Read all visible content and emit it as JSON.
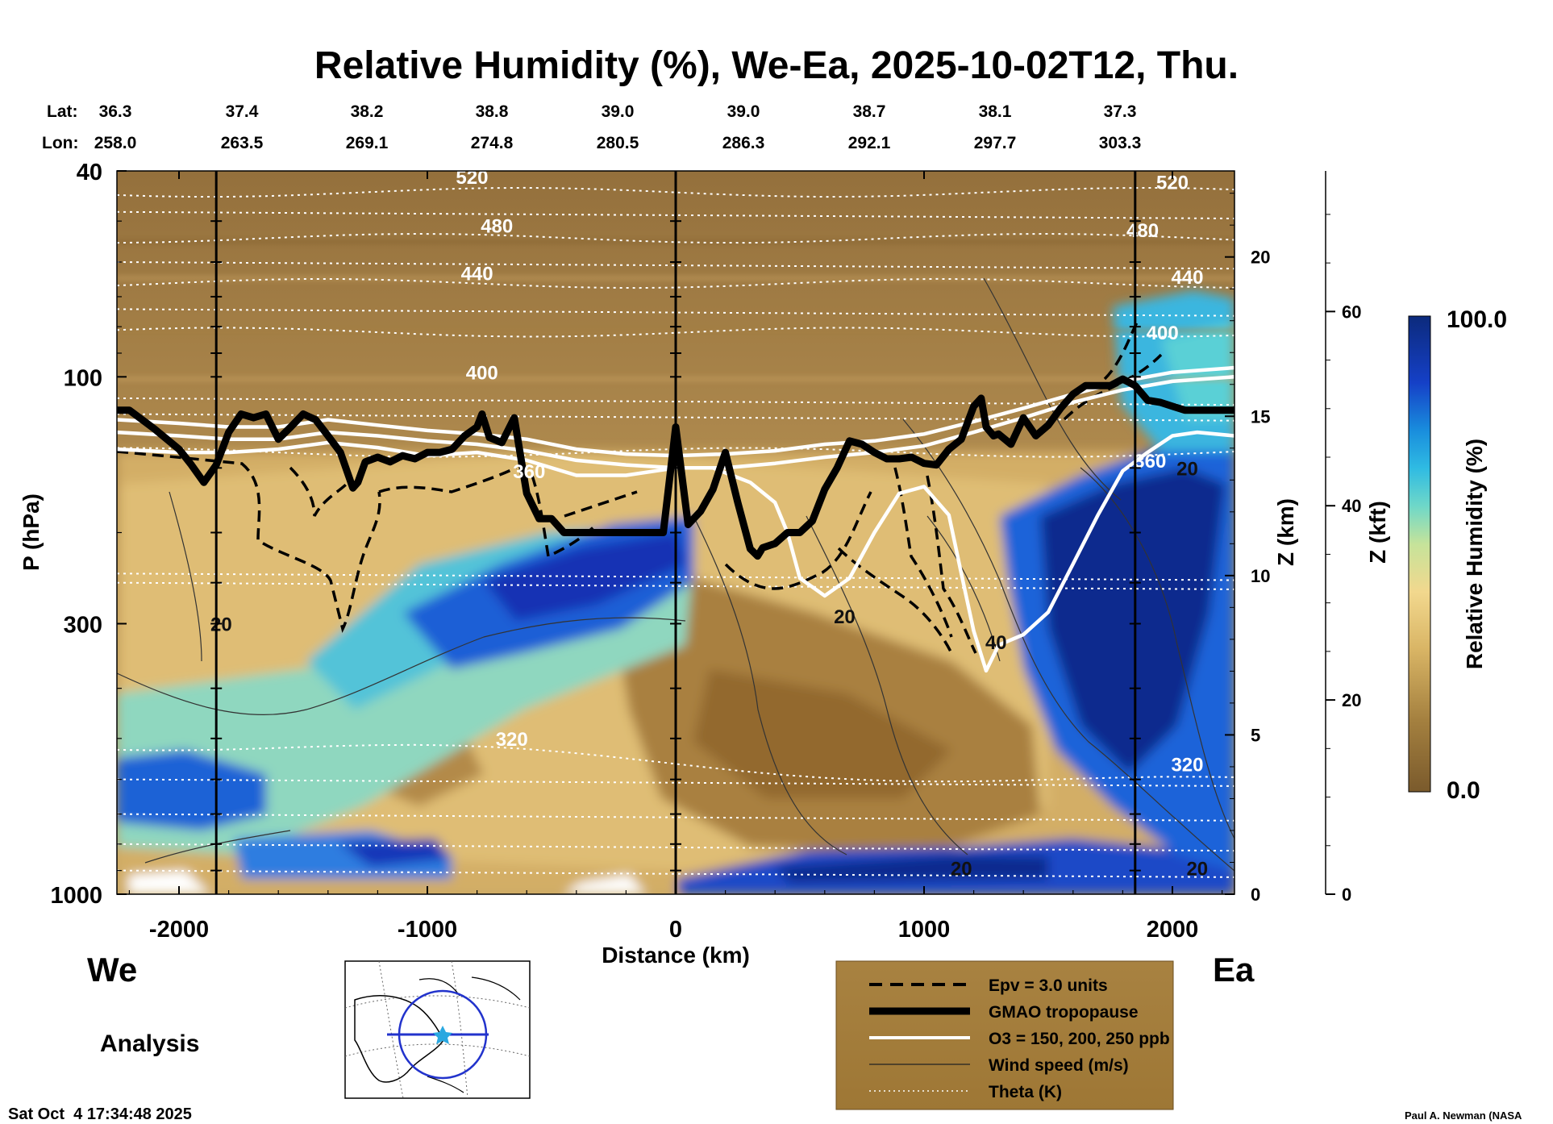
{
  "chart_data": {
    "type": "heatmap",
    "title": "Relative Humidity (%), We-Ea, 2025-10-02T12, Thu.",
    "xlabel": "Distance (km)",
    "ylabel": "P (hPa)",
    "y2label": "Z (km)",
    "y3label": "Z (kft)",
    "colorbar_label": "Relative Humidity (%)",
    "colorbar_max": "100.0",
    "colorbar_min": "0.0",
    "xlim": [
      -2250,
      2250
    ],
    "ylim": [
      1000,
      40
    ],
    "y_scale": "log",
    "x_ticks": [
      "-2000",
      "-1000",
      "0",
      "1000",
      "2000"
    ],
    "x_tick_values": [
      -2000,
      -1000,
      0,
      1000,
      2000
    ],
    "y_ticks": [
      "40",
      "100",
      "300",
      "1000"
    ],
    "y_tick_values": [
      40,
      100,
      300,
      1000
    ],
    "z_km_ticks": [
      "0",
      "5",
      "10",
      "15",
      "20"
    ],
    "z_km_values": [
      0,
      5,
      10,
      15,
      20
    ],
    "z_kft_ticks": [
      "0",
      "20",
      "40",
      "60"
    ],
    "z_kft_values": [
      0,
      20,
      40,
      60
    ],
    "lat_label": "Lat:",
    "lon_label": "Lon:",
    "lat_values": [
      "36.3",
      "37.4",
      "38.2",
      "38.8",
      "39.0",
      "39.0",
      "38.7",
      "38.1",
      "37.3"
    ],
    "lon_values": [
      "258.0",
      "263.5",
      "269.1",
      "274.8",
      "280.5",
      "286.3",
      "292.1",
      "297.7",
      "303.3"
    ],
    "vertical_lines_km": [
      -1850,
      0,
      1850
    ],
    "theta_contours": [
      {
        "label": "520",
        "p": 44
      },
      {
        "label": "480",
        "p": 54
      },
      {
        "label": "440",
        "p": 66
      },
      {
        "label": "400",
        "p": 82
      },
      {
        "label": "360",
        "p": 140
      },
      {
        "label": "320",
        "p": 560
      }
    ],
    "theta_labels": [
      {
        "text": "520",
        "x": -820,
        "p": 41
      },
      {
        "text": "520",
        "x": 2000,
        "p": 42
      },
      {
        "text": "480",
        "x": -720,
        "p": 51
      },
      {
        "text": "480",
        "x": 1880,
        "p": 52
      },
      {
        "text": "440",
        "x": -800,
        "p": 63
      },
      {
        "text": "440",
        "x": 2060,
        "p": 64
      },
      {
        "text": "400",
        "x": -780,
        "p": 98
      },
      {
        "text": "400",
        "x": 1960,
        "p": 82
      },
      {
        "text": "360",
        "x": -590,
        "p": 152
      },
      {
        "text": "360",
        "x": 1910,
        "p": 145
      },
      {
        "text": "320",
        "x": -660,
        "p": 500
      },
      {
        "text": "320",
        "x": 2060,
        "p": 560
      }
    ],
    "wind_labels": [
      {
        "text": "20",
        "x": -1830,
        "p": 300
      },
      {
        "text": "20",
        "x": 680,
        "p": 290
      },
      {
        "text": "40",
        "x": 1290,
        "p": 325
      },
      {
        "text": "20",
        "x": 1150,
        "p": 890
      },
      {
        "text": "20",
        "x": 2100,
        "p": 890
      },
      {
        "text": "20",
        "x": 2060,
        "p": 150
      }
    ],
    "tropopause": {
      "x": [
        -2250,
        -2200,
        -2100,
        -2000,
        -1950,
        -1900,
        -1850,
        -1800,
        -1750,
        -1700,
        -1650,
        -1600,
        -1550,
        -1500,
        -1450,
        -1400,
        -1350,
        -1300,
        -1280,
        -1250,
        -1200,
        -1150,
        -1100,
        -1050,
        -1000,
        -950,
        -900,
        -850,
        -800,
        -780,
        -750,
        -700,
        -650,
        -600,
        -550,
        -500,
        -450,
        -400,
        -350,
        -300,
        -250,
        -200,
        -150,
        -100,
        -50,
        0,
        50,
        100,
        150,
        200,
        250,
        300,
        330,
        350,
        400,
        450,
        500,
        550,
        600,
        650,
        700,
        750,
        800,
        850,
        900,
        950,
        1000,
        1050,
        1100,
        1150,
        1200,
        1230,
        1250,
        1280,
        1300,
        1350,
        1400,
        1450,
        1500,
        1550,
        1600,
        1650,
        1700,
        1750,
        1800,
        1850,
        1900,
        1950,
        2000,
        2050,
        2100,
        2150,
        2200,
        2250
      ],
      "p": [
        116,
        116,
        126,
        138,
        148,
        160,
        148,
        128,
        118,
        120,
        118,
        132,
        125,
        118,
        121,
        130,
        140,
        164,
        160,
        146,
        143,
        146,
        142,
        144,
        140,
        140,
        138,
        130,
        125,
        118,
        131,
        134,
        120,
        168,
        188,
        188,
        200,
        200,
        200,
        200,
        200,
        200,
        200,
        200,
        200,
        125,
        193,
        182,
        165,
        140,
        175,
        215,
        222,
        214,
        210,
        200,
        200,
        190,
        165,
        150,
        133,
        135,
        140,
        144,
        144,
        143,
        147,
        148,
        138,
        132,
        114,
        110,
        125,
        130,
        129,
        135,
        120,
        130,
        124,
        115,
        108,
        104,
        104,
        104,
        101,
        104,
        111,
        112,
        114,
        116,
        116,
        116,
        116,
        116
      ]
    },
    "ozone_150": {
      "x": [
        -2250,
        -2000,
        -1800,
        -1600,
        -1400,
        -1200,
        -1000,
        -800,
        -600,
        -400,
        -200,
        0,
        150,
        300,
        400,
        450,
        500,
        600,
        700,
        800,
        900,
        1000,
        1100,
        1150,
        1200,
        1250,
        1300,
        1400,
        1500,
        1600,
        1700,
        1800,
        1900,
        2000,
        2100,
        2250
      ],
      "p": [
        138,
        140,
        140,
        138,
        134,
        137,
        142,
        140,
        145,
        155,
        155,
        150,
        150,
        160,
        175,
        200,
        245,
        265,
        245,
        200,
        168,
        163,
        185,
        240,
        310,
        370,
        330,
        315,
        285,
        230,
        185,
        152,
        140,
        130,
        128,
        130
      ]
    },
    "ozone_200": {
      "x": [
        -2250,
        -2000,
        -1800,
        -1600,
        -1400,
        -1200,
        -1000,
        -800,
        -600,
        -400,
        -200,
        0,
        200,
        400,
        600,
        800,
        1000,
        1200,
        1400,
        1600,
        1800,
        2000,
        2250
      ],
      "p": [
        128,
        130,
        132,
        132,
        128,
        130,
        133,
        135,
        139,
        145,
        148,
        150,
        150,
        147,
        143,
        140,
        136,
        128,
        120,
        112,
        106,
        102,
        100
      ]
    },
    "ozone_250": {
      "x": [
        -2250,
        -2000,
        -1800,
        -1600,
        -1400,
        -1200,
        -1000,
        -800,
        -600,
        -400,
        -200,
        0,
        200,
        400,
        600,
        800,
        1000,
        1200,
        1400,
        1600,
        1800,
        2000,
        2250
      ],
      "p": [
        121,
        123,
        125,
        125,
        121,
        124,
        127,
        129,
        132,
        138,
        141,
        142,
        141,
        139,
        135,
        133,
        129,
        122,
        115,
        108,
        102,
        98,
        96
      ]
    },
    "legend": [
      {
        "label": "Epv = 3.0 units",
        "style": "dashed"
      },
      {
        "label": "GMAO tropopause",
        "style": "thick"
      },
      {
        "label": "O3 = 150, 200, 250 ppb",
        "style": "white"
      },
      {
        "label": "Wind speed (m/s)",
        "style": "thin"
      },
      {
        "label": "Theta (K)",
        "style": "dotted"
      }
    ]
  },
  "labels": {
    "west": "We",
    "east": "Ea",
    "analysis": "Analysis",
    "timestamp": "Sat Oct  4 17:34:48 2025",
    "credit": "Paul A. Newman (NASA"
  },
  "colors": {
    "plot_background": "#b5945a",
    "legend_background": "#a27c37",
    "tropopause": "#000000",
    "ozone": "#ffffff",
    "colorbar_top": "#0c2a7c",
    "colorbar_bottom": "#7a5a2c"
  }
}
